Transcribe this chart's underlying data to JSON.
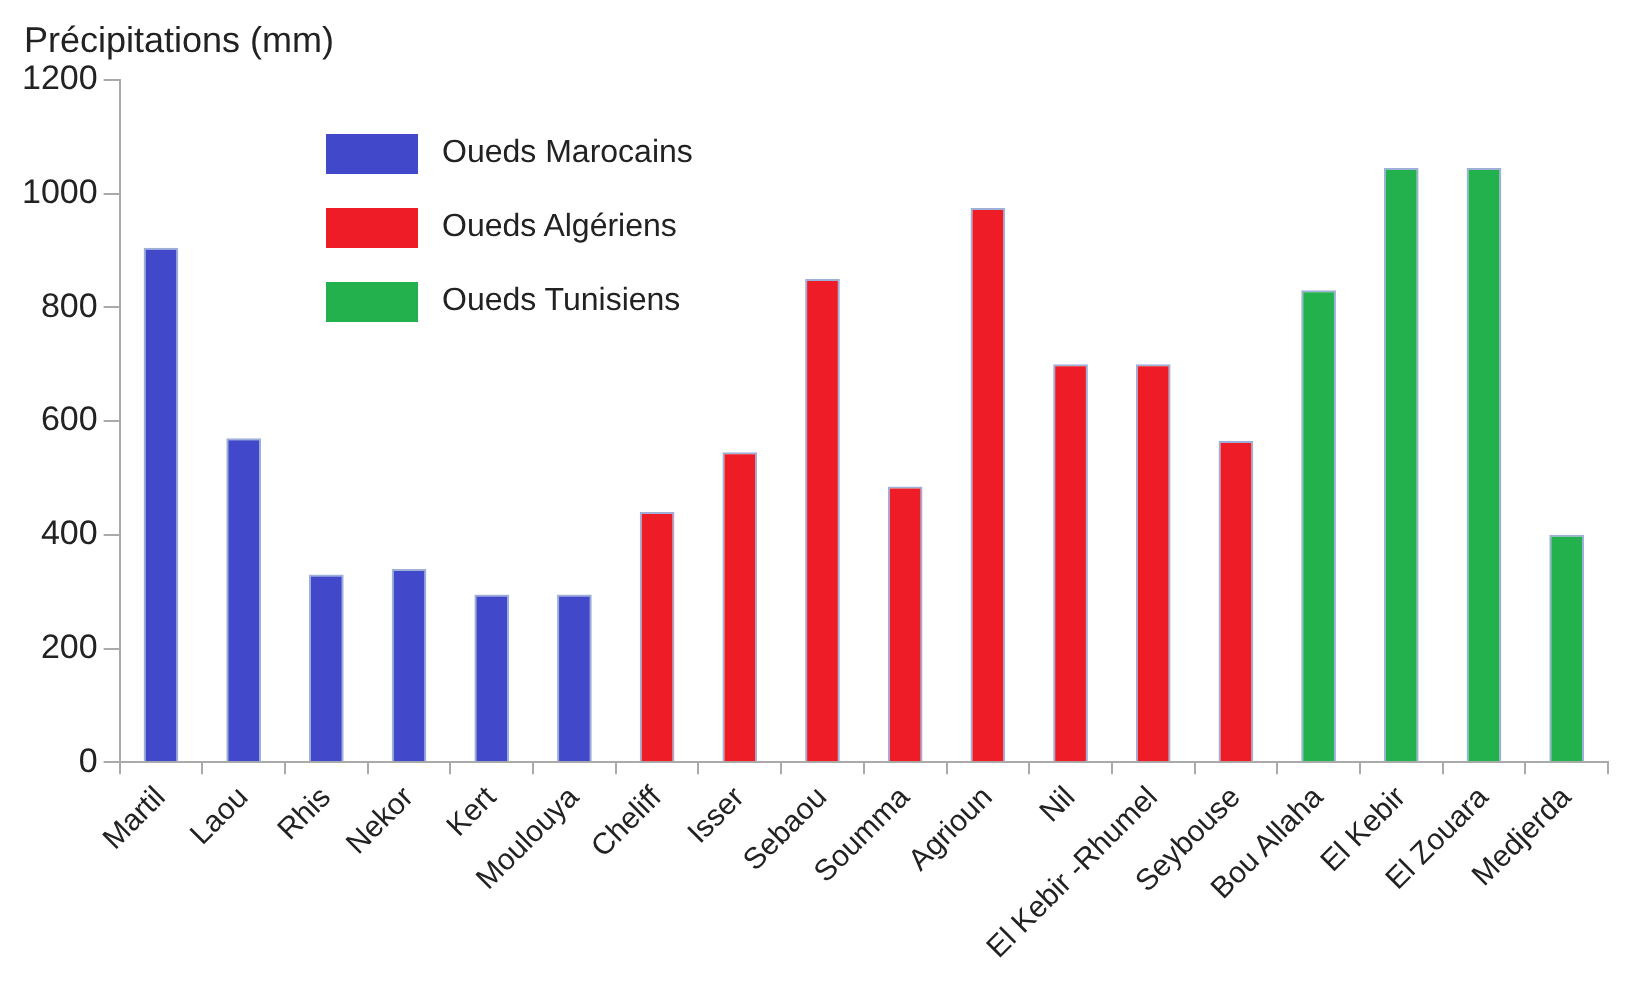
{
  "chart_data": {
    "type": "bar",
    "ylabel": "Précipitations (mm)",
    "categories": [
      "Martil",
      "Laou",
      "Rhis",
      "Nekor",
      "Kert",
      "Moulouya",
      "Cheliff",
      "Isser",
      "Sebaou",
      "Soumma",
      "Agrioun",
      "Nil",
      "El Kebir -Rhumel",
      "Seybouse",
      "Bou Allaha",
      "El Kebir",
      "El Zouara",
      "Medjerda"
    ],
    "series": [
      {
        "name": "Oueds Marocains",
        "color": "#4148c9",
        "values": [
          905,
          570,
          330,
          340,
          295,
          295,
          null,
          null,
          null,
          null,
          null,
          null,
          null,
          null,
          null,
          null,
          null,
          null
        ]
      },
      {
        "name": "Oueds Algériens",
        "color": "#ed1c27",
        "values": [
          null,
          null,
          null,
          null,
          null,
          null,
          440,
          545,
          850,
          485,
          975,
          700,
          700,
          565,
          null,
          null,
          null,
          null
        ]
      },
      {
        "name": "Oueds Tunisiens",
        "color": "#22b14c",
        "values": [
          null,
          null,
          null,
          null,
          null,
          null,
          null,
          null,
          null,
          null,
          null,
          null,
          null,
          null,
          830,
          1045,
          1045,
          400
        ]
      }
    ],
    "ylim": [
      0,
      1200
    ],
    "yticks": [
      0,
      200,
      400,
      600,
      800,
      1000,
      1200
    ],
    "grid": false,
    "legend": "top left"
  }
}
